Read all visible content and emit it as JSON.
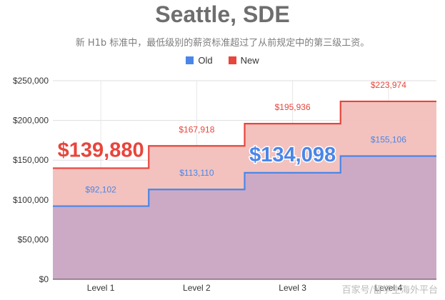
{
  "header": {
    "title": "Seattle, SDE",
    "subtitle": "新 H1b 标准中，最低级别的薪资标准超过了从前规定中的第三级工资。"
  },
  "legend": {
    "old_label": "Old",
    "new_label": "New"
  },
  "colors": {
    "old": "#4a86e8",
    "new": "#e8453c",
    "new_fill": "#f2bfba",
    "old_fill": "#c9a9c6",
    "axis_text": "#333333"
  },
  "watermark": "百家号/留学生海外平台",
  "chart_data": {
    "type": "area",
    "categories": [
      "Level 1",
      "Level 2",
      "Level 3",
      "Level 4"
    ],
    "series": [
      {
        "name": "Old",
        "values": [
          92102,
          113110,
          134098,
          155106
        ],
        "labels": [
          "$92,102",
          "$113,110",
          "$134,098",
          "$155,106"
        ]
      },
      {
        "name": "New",
        "values": [
          139880,
          167918,
          195936,
          223974
        ],
        "labels": [
          "$139,880",
          "$167,918",
          "$195,936",
          "$223,974"
        ]
      }
    ],
    "highlights": [
      {
        "series": "New",
        "index": 0,
        "label": "$139,880"
      },
      {
        "series": "Old",
        "index": 2,
        "label": "$134,098"
      }
    ],
    "yticks": [
      "$0",
      "$50,000",
      "$100,000",
      "$150,000",
      "$200,000",
      "$250,000"
    ],
    "ylim": [
      0,
      250000
    ],
    "step": true,
    "grid": true,
    "legend_position": "top"
  }
}
